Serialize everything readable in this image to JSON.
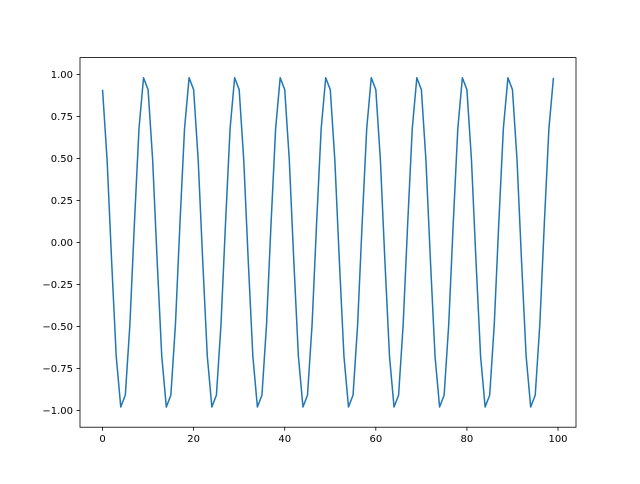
{
  "chart_data": {
    "type": "line",
    "title": "",
    "xlabel": "",
    "ylabel": "",
    "xlim": [
      -4.95,
      103.95
    ],
    "ylim": [
      -1.1,
      1.1
    ],
    "grid": false,
    "x_ticks": [
      0,
      20,
      40,
      60,
      80,
      100
    ],
    "x_tick_labels": [
      "0",
      "20",
      "40",
      "60",
      "80",
      "100"
    ],
    "y_ticks": [
      -1.0,
      -0.75,
      -0.5,
      -0.25,
      0.0,
      0.25,
      0.5,
      0.75,
      1.0
    ],
    "y_tick_labels": [
      "−1.00",
      "−0.75",
      "−0.50",
      "−0.25",
      "0.00",
      "0.25",
      "0.50",
      "0.75",
      "1.00"
    ],
    "series": [
      {
        "color": "#1f77b4",
        "x_start": 0,
        "x_step": 1,
        "values": [
          0.909,
          0.491,
          -0.115,
          -0.677,
          -0.98,
          -0.909,
          -0.491,
          0.115,
          0.677,
          0.98,
          0.909,
          0.491,
          -0.115,
          -0.677,
          -0.98,
          -0.909,
          -0.491,
          0.115,
          0.677,
          0.98,
          0.909,
          0.491,
          -0.115,
          -0.677,
          -0.98,
          -0.909,
          -0.491,
          0.115,
          0.677,
          0.98,
          0.909,
          0.491,
          -0.115,
          -0.677,
          -0.98,
          -0.909,
          -0.491,
          0.115,
          0.677,
          0.98,
          0.909,
          0.491,
          -0.115,
          -0.677,
          -0.98,
          -0.909,
          -0.491,
          0.115,
          0.677,
          0.98,
          0.909,
          0.491,
          -0.115,
          -0.677,
          -0.98,
          -0.909,
          -0.491,
          0.115,
          0.677,
          0.98,
          0.909,
          0.491,
          -0.115,
          -0.677,
          -0.98,
          -0.909,
          -0.491,
          0.115,
          0.677,
          0.98,
          0.909,
          0.491,
          -0.115,
          -0.677,
          -0.98,
          -0.909,
          -0.491,
          0.115,
          0.677,
          0.98,
          0.909,
          0.491,
          -0.115,
          -0.677,
          -0.98,
          -0.909,
          -0.491,
          0.115,
          0.677,
          0.98,
          0.909,
          0.491,
          -0.115,
          -0.677,
          -0.98,
          -0.909,
          -0.491,
          0.115,
          0.677,
          0.98
        ]
      }
    ]
  }
}
